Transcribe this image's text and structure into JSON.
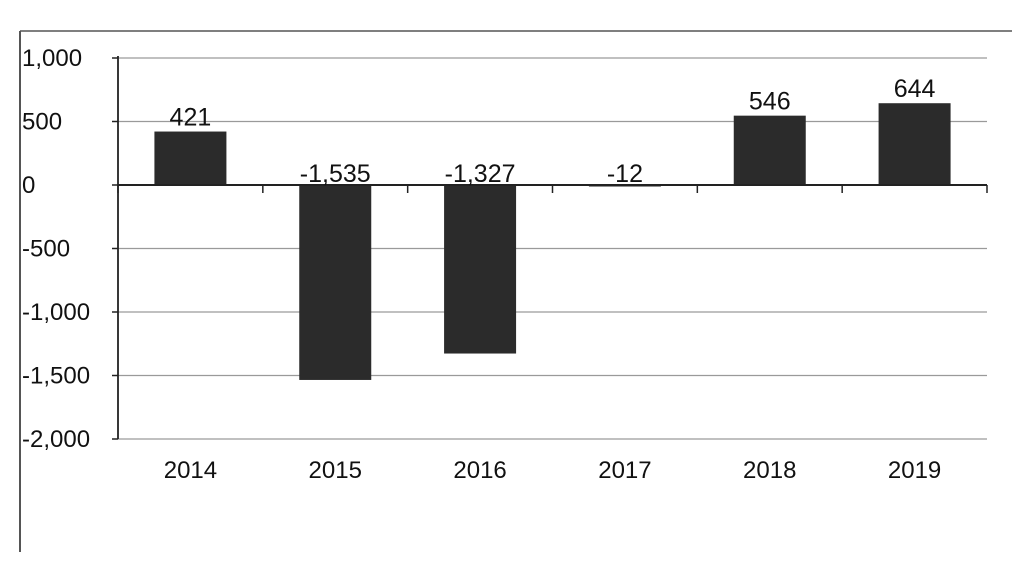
{
  "chart_data": {
    "type": "bar",
    "categories": [
      "2014",
      "2015",
      "2016",
      "2017",
      "2018",
      "2019"
    ],
    "values": [
      421,
      -1535,
      -1327,
      -12,
      546,
      644
    ],
    "data_labels": [
      "421",
      "-1,535",
      "-1,327",
      "-12",
      "546",
      "644"
    ],
    "yticks": [
      1000,
      500,
      0,
      -500,
      -1000,
      -1500,
      -2000
    ],
    "ytick_labels": [
      "1,000",
      "500",
      "0",
      "-500",
      "-1,000",
      "-1,500",
      "-2,000"
    ],
    "ylim": [
      -2000,
      1000
    ],
    "grid": "horizontal",
    "legend": "none",
    "bar_color": "#2b2b2b",
    "axis_color": "#222222",
    "grid_color": "#9a9a9a"
  }
}
